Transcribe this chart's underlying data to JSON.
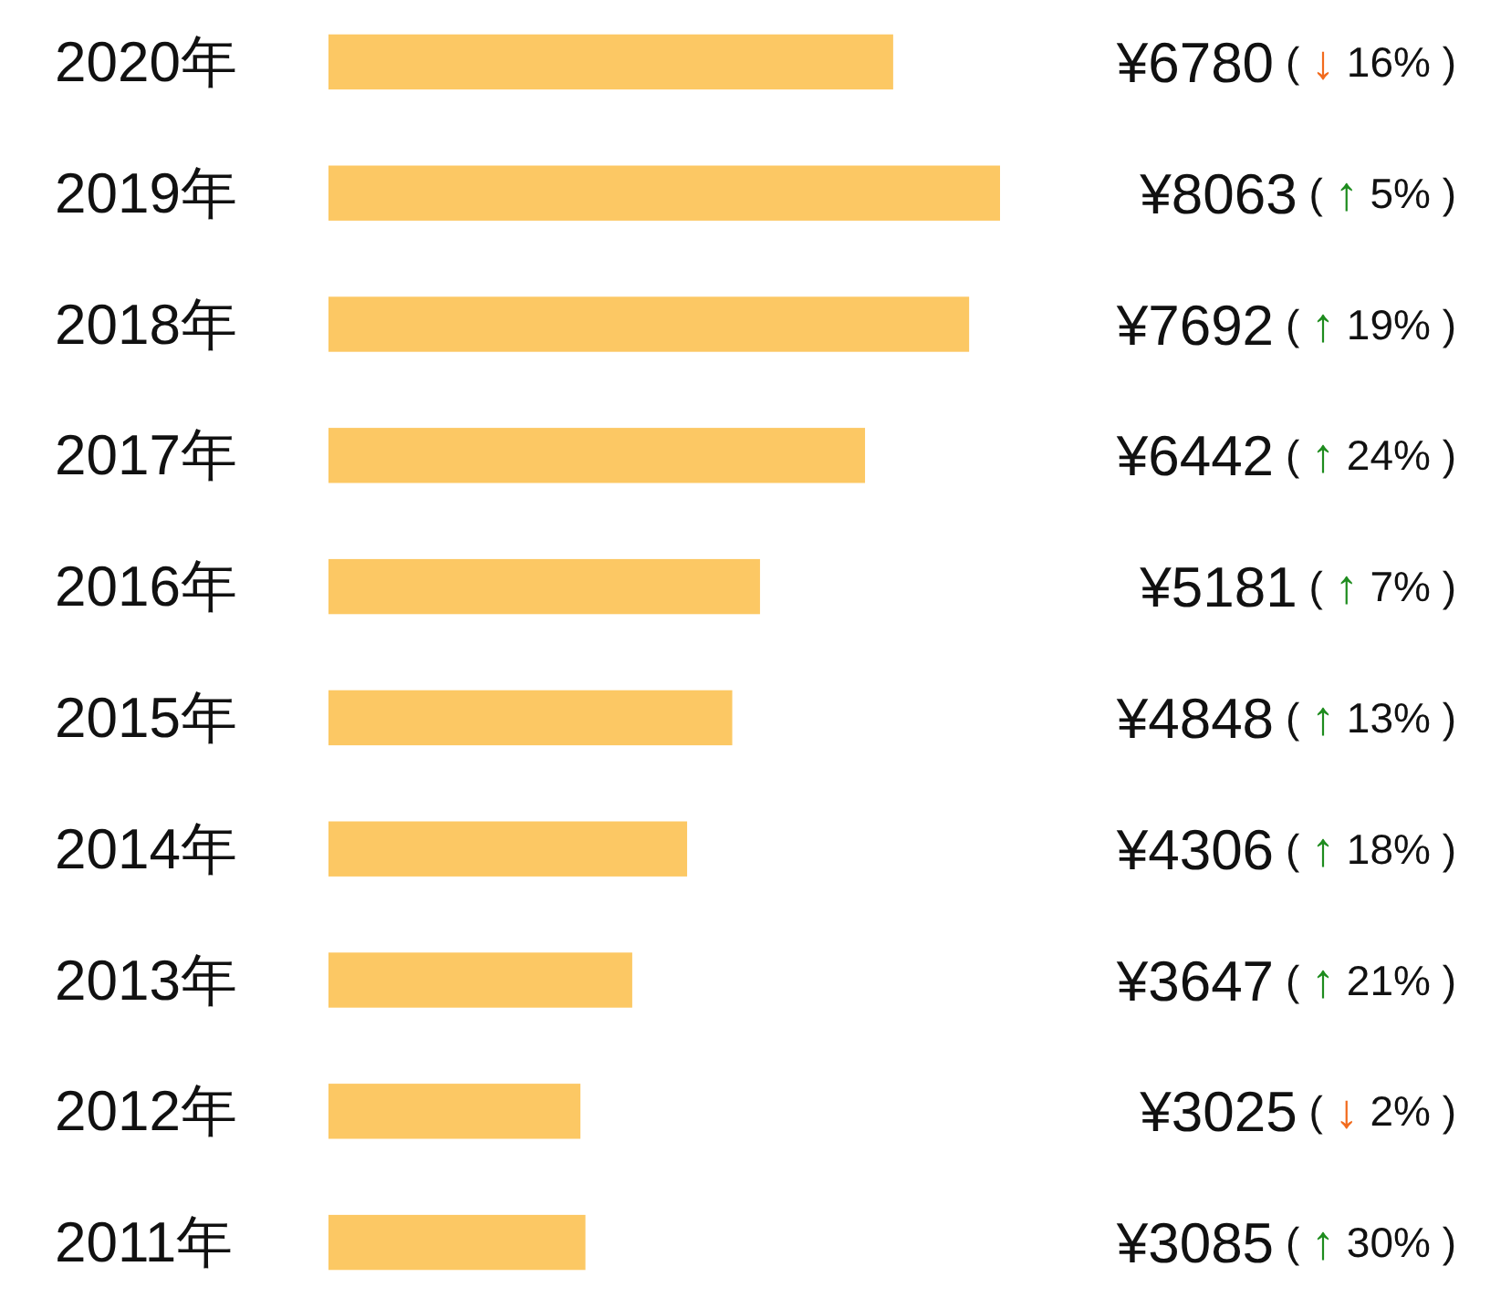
{
  "chart_data": {
    "type": "bar",
    "orientation": "horizontal",
    "categories": [
      "2020年",
      "2019年",
      "2018年",
      "2017年",
      "2016年",
      "2015年",
      "2014年",
      "2013年",
      "2012年",
      "2011年"
    ],
    "values": [
      6780,
      8063,
      7692,
      6442,
      5181,
      4848,
      4306,
      3647,
      3025,
      3085
    ],
    "color": "#fcc864",
    "value_labels": [
      "¥6780 ( ↓ 16% )",
      "¥8063 ( ↑ 5% )",
      "¥7692 ( ↑ 19% )",
      "¥6442 ( ↑ 24% )",
      "¥5181 ( ↑ 7% )",
      "¥4848 ( ↑ 13% )",
      "¥4306 ( ↑ 18% )",
      "¥3647 ( ↑ 21% )",
      "¥3025 ( ↓ 2% )",
      "¥3085 ( ↑ 30% )"
    ]
  }
}
